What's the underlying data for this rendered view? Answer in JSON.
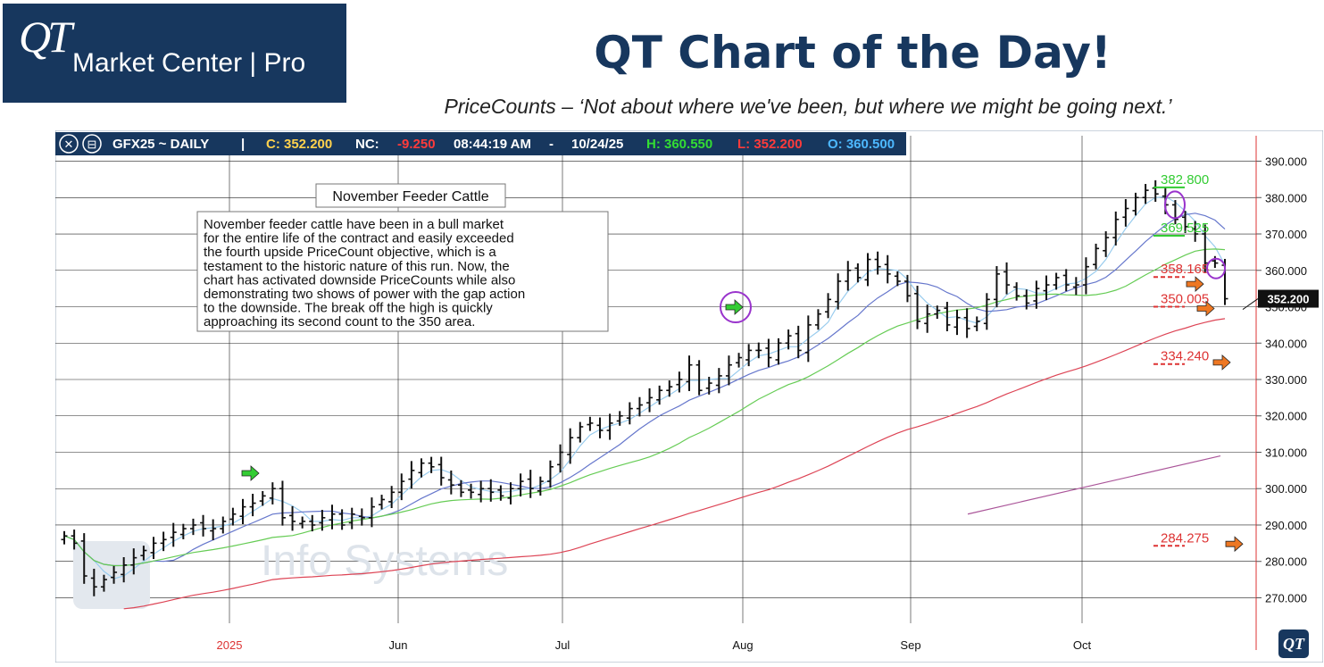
{
  "header": {
    "logo_qt": "QT",
    "logo_text": "Market Center | Pro",
    "title": "QT Chart of the Day!",
    "tagline": "PriceCounts – ‘Not about where we've been, but where we might be going next.’"
  },
  "toolbar": {
    "symbol": "GFX25 ~ DAILY",
    "separator": "|",
    "close": "C: 352.200",
    "nc_label": "NC:",
    "nc_value": "-9.250",
    "time": "08:44:19 AM",
    "dash": "-",
    "date": "10/24/25",
    "high": "H: 360.550",
    "low": "L: 352.200",
    "open": "O: 360.500"
  },
  "annotation": {
    "title": "November Feeder Cattle",
    "body": [
      "November feeder cattle have been in a bull market",
      "for the entire life of the contract and easily exceeded",
      "the fourth upside PriceCount objective, which is a",
      "testament to the historic nature of this run.  Now, the",
      "chart has activated downside PriceCounts while also",
      "demonstrating two shows of power with the gap action",
      "to the downside.  The break off the high is quickly",
      "approaching its second count to the 350 area."
    ]
  },
  "watermark": "Info Systems",
  "corner_logo": "QT",
  "colors": {
    "brand": "#17375e",
    "count_up": "#33cc33",
    "count_down": "#dd3333",
    "arrow_up": "#33cc33",
    "arrow_down": "#ee7722",
    "ma_fast": "#99ccee",
    "ma_mid": "#6677cc",
    "ma_slow": "#66cc55",
    "ma_long": "#dd4455",
    "trend": "#aa5599",
    "highlight": "#9933cc"
  },
  "chart_data": {
    "type": "line",
    "style": "ohlc-bars",
    "symbol": "GFX25",
    "ylim": [
      263,
      397
    ],
    "yticks": [
      270,
      280,
      290,
      300,
      310,
      320,
      330,
      340,
      350,
      360,
      370,
      380,
      390
    ],
    "ytick_labels": [
      "270.000",
      "280.000",
      "290.000",
      "300.000",
      "310.000",
      "320.000",
      "330.000",
      "340.000",
      "350.000",
      "360.000",
      "370.000",
      "380.000",
      "390.000"
    ],
    "x_labels": [
      "2025",
      "Jun",
      "Jul",
      "Aug",
      "Sep",
      "Oct"
    ],
    "grid": true,
    "last_price": 352.2,
    "last_price_label": "352.200",
    "closes": [
      287,
      285,
      276,
      273,
      275,
      277,
      279,
      281,
      283,
      285,
      286,
      288,
      289,
      290,
      289,
      289,
      291,
      293,
      295,
      296,
      298,
      300,
      292,
      291,
      291,
      290,
      292,
      293,
      290,
      293,
      292,
      295,
      297,
      299,
      302,
      305,
      307,
      306,
      303,
      301,
      299,
      299,
      300,
      299,
      298,
      300,
      302,
      300,
      302,
      306,
      310,
      314,
      317,
      318,
      316,
      318,
      320,
      322,
      323,
      325,
      327,
      328,
      330,
      334,
      327,
      329,
      331,
      334,
      336,
      338,
      338,
      336,
      340,
      342,
      338,
      345,
      348,
      352,
      357,
      360,
      358,
      363,
      361,
      359,
      357,
      353,
      346,
      348,
      349,
      345,
      347,
      344,
      346,
      352,
      359,
      356,
      353,
      351,
      355,
      356,
      358,
      356,
      356,
      361,
      366,
      369,
      374,
      377,
      380,
      382,
      381,
      378,
      374,
      372,
      370,
      362,
      362,
      352.2
    ],
    "price_counts": [
      {
        "label": "382.800",
        "value": 382.8,
        "color": "#33cc33"
      },
      {
        "label": "369.525",
        "value": 369.525,
        "color": "#33cc33"
      },
      {
        "label": "358.165",
        "value": 358.165,
        "color": "#dd3333"
      },
      {
        "label": "350.005",
        "value": 350.005,
        "color": "#dd3333"
      },
      {
        "label": "334.240",
        "value": 334.24,
        "color": "#dd3333"
      },
      {
        "label": "284.275",
        "value": 284.275,
        "color": "#dd3333"
      }
    ]
  }
}
